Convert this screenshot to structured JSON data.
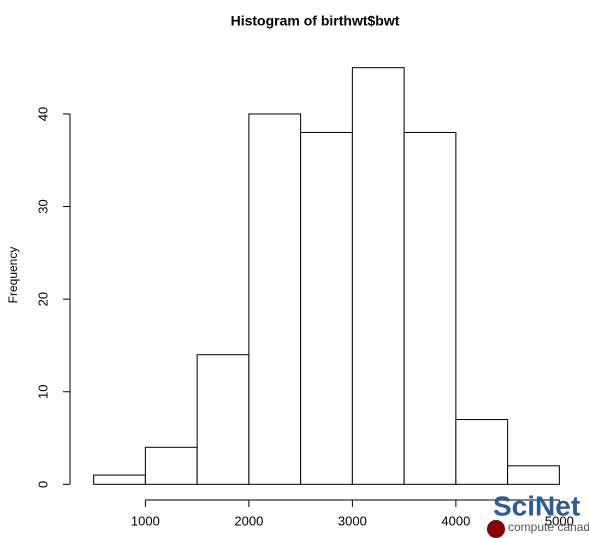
{
  "chart_data": {
    "type": "histogram",
    "title": "Histogram of birthwt$bwt",
    "ylabel": "Frequency",
    "bins": [
      500,
      1000,
      1500,
      2000,
      2500,
      3000,
      3500,
      4000,
      4500,
      5000
    ],
    "values": [
      1,
      4,
      14,
      40,
      38,
      45,
      38,
      7,
      2
    ],
    "color": "#ffffff",
    "xlim": [
      320,
      5180
    ],
    "xticks": [
      1000,
      2000,
      3000,
      4000,
      5000
    ],
    "ylim": [
      -1.8,
      46.8
    ],
    "yticks": [
      0,
      10,
      20,
      30,
      40
    ],
    "grid": false
  },
  "logo": {
    "text": "SciNet",
    "subtext": "compute canada"
  }
}
